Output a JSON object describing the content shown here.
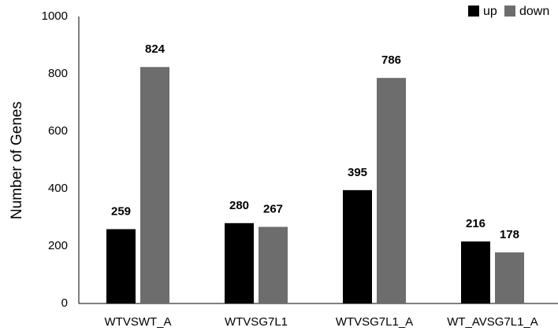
{
  "chart_data": {
    "type": "bar",
    "y_label": "Number of Genes",
    "categories": [
      "WTVSWT_A",
      "WTVSG7L1",
      "WTVSG7L1_A",
      "WT_AVSG7L1_A"
    ],
    "series": [
      {
        "name": "up",
        "color": "#000000",
        "values": [
          259,
          280,
          395,
          216
        ]
      },
      {
        "name": "down",
        "color": "#6d6d6d",
        "values": [
          824,
          267,
          786,
          178
        ]
      }
    ],
    "ylim": [
      0,
      1000
    ],
    "yticks": [
      0,
      200,
      400,
      600,
      800,
      1000
    ],
    "grid": false,
    "legend": "top-right"
  }
}
